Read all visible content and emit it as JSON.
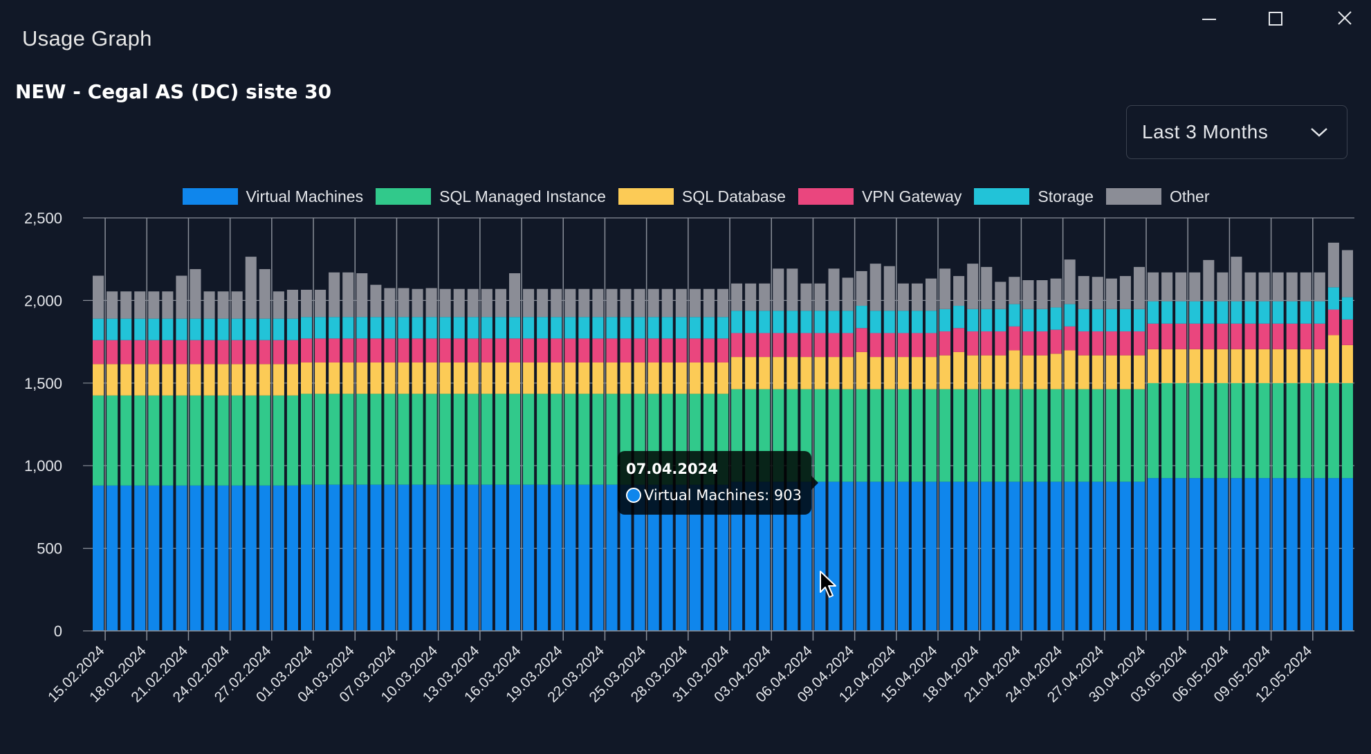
{
  "window": {
    "title": "Usage Graph",
    "minimize_label": "Minimize",
    "maximize_label": "Maximize",
    "close_label": "Close"
  },
  "subtitle": "NEW - Cegal AS (DC) siste 30",
  "range": {
    "selected": "Last 3 Months"
  },
  "tooltip": {
    "date": "07.04.2024",
    "text": "Virtual Machines: 903",
    "color": "#0f86ec"
  },
  "icons": {
    "minimize": "minimize-icon",
    "maximize": "maximize-icon",
    "close": "close-icon",
    "dropdown": "chevron-down-icon",
    "cursor": "mouse-pointer-icon"
  },
  "colors": {
    "background": "#111827",
    "grid": "#8a8f99",
    "text": "#e5e7eb"
  },
  "chart_data": {
    "type": "bar",
    "stacked": true,
    "title": "NEW - Cegal AS (DC) siste 30",
    "xlabel": "",
    "ylabel": "",
    "ylim": [
      0,
      2500
    ],
    "yticks": [
      0,
      500,
      1000,
      1500,
      2000,
      2500
    ],
    "ytick_labels": [
      "0",
      "500",
      "1,000",
      "1,500",
      "2,000",
      "2,500"
    ],
    "legend_position": "top-center",
    "categories": [
      "15.02.2024",
      "16.02.2024",
      "17.02.2024",
      "18.02.2024",
      "19.02.2024",
      "20.02.2024",
      "21.02.2024",
      "22.02.2024",
      "23.02.2024",
      "24.02.2024",
      "25.02.2024",
      "26.02.2024",
      "27.02.2024",
      "28.02.2024",
      "29.02.2024",
      "01.03.2024",
      "02.03.2024",
      "03.03.2024",
      "04.03.2024",
      "05.03.2024",
      "06.03.2024",
      "07.03.2024",
      "08.03.2024",
      "09.03.2024",
      "10.03.2024",
      "11.03.2024",
      "12.03.2024",
      "13.03.2024",
      "14.03.2024",
      "15.03.2024",
      "16.03.2024",
      "17.03.2024",
      "18.03.2024",
      "19.03.2024",
      "20.03.2024",
      "21.03.2024",
      "22.03.2024",
      "23.03.2024",
      "24.03.2024",
      "25.03.2024",
      "26.03.2024",
      "27.03.2024",
      "28.03.2024",
      "29.03.2024",
      "30.03.2024",
      "31.03.2024",
      "01.04.2024",
      "02.04.2024",
      "03.04.2024",
      "04.04.2024",
      "05.04.2024",
      "06.04.2024",
      "07.04.2024",
      "08.04.2024",
      "09.04.2024",
      "10.04.2024",
      "11.04.2024",
      "12.04.2024",
      "13.04.2024",
      "14.04.2024",
      "15.04.2024",
      "16.04.2024",
      "17.04.2024",
      "18.04.2024",
      "19.04.2024",
      "20.04.2024",
      "21.04.2024",
      "22.04.2024",
      "23.04.2024",
      "24.04.2024",
      "25.04.2024",
      "26.04.2024",
      "27.04.2024",
      "28.04.2024",
      "29.04.2024",
      "30.04.2024",
      "01.05.2024",
      "02.05.2024",
      "03.05.2024",
      "04.05.2024",
      "05.05.2024",
      "06.05.2024",
      "07.05.2024",
      "08.05.2024",
      "09.05.2024",
      "10.05.2024",
      "11.05.2024",
      "12.05.2024",
      "13.05.2024",
      "14.05.2024",
      "15.05.2024"
    ],
    "xtick_labels": [
      "15.02.2024",
      "18.02.2024",
      "21.02.2024",
      "24.02.2024",
      "27.02.2024",
      "01.03.2024",
      "04.03.2024",
      "07.03.2024",
      "10.03.2024",
      "13.03.2024",
      "16.03.2024",
      "19.03.2024",
      "22.03.2024",
      "25.03.2024",
      "28.03.2024",
      "31.03.2024",
      "03.04.2024",
      "06.04.2024",
      "09.04.2024",
      "12.04.2024",
      "15.04.2024",
      "18.04.2024",
      "21.04.2024",
      "24.04.2024",
      "27.04.2024",
      "30.04.2024",
      "03.05.2024",
      "06.05.2024",
      "09.05.2024",
      "12.05.2024"
    ],
    "series": [
      {
        "name": "Virtual Machines",
        "color": "#0f86ec",
        "values": [
          880,
          880,
          880,
          880,
          880,
          880,
          880,
          880,
          880,
          880,
          880,
          880,
          880,
          880,
          880,
          885,
          885,
          885,
          885,
          885,
          885,
          885,
          885,
          885,
          885,
          885,
          885,
          885,
          885,
          885,
          885,
          885,
          885,
          885,
          885,
          885,
          885,
          885,
          885,
          885,
          885,
          885,
          885,
          885,
          885,
          885,
          903,
          903,
          903,
          903,
          903,
          903,
          903,
          903,
          903,
          903,
          903,
          903,
          903,
          903,
          903,
          903,
          903,
          903,
          903,
          903,
          903,
          903,
          903,
          903,
          903,
          903,
          903,
          903,
          903,
          903,
          925,
          925,
          925,
          925,
          925,
          925,
          925,
          925,
          925,
          925,
          925,
          925,
          925,
          925,
          925
        ]
      },
      {
        "name": "SQL Managed Instance",
        "color": "#31c98b",
        "values": [
          545,
          545,
          545,
          545,
          545,
          545,
          545,
          545,
          545,
          545,
          545,
          545,
          545,
          545,
          545,
          550,
          550,
          550,
          550,
          550,
          550,
          550,
          550,
          550,
          550,
          550,
          550,
          550,
          550,
          550,
          550,
          550,
          550,
          550,
          550,
          550,
          550,
          550,
          550,
          550,
          550,
          550,
          550,
          550,
          550,
          550,
          560,
          560,
          560,
          560,
          560,
          560,
          560,
          560,
          560,
          560,
          560,
          560,
          560,
          560,
          560,
          560,
          560,
          560,
          560,
          560,
          560,
          560,
          560,
          560,
          560,
          560,
          560,
          560,
          560,
          560,
          575,
          575,
          575,
          575,
          575,
          575,
          575,
          575,
          575,
          575,
          575,
          575,
          575,
          575,
          575
        ]
      },
      {
        "name": "SQL Database",
        "color": "#fccb56",
        "values": [
          190,
          190,
          190,
          190,
          190,
          190,
          190,
          190,
          190,
          190,
          190,
          190,
          190,
          190,
          190,
          190,
          190,
          190,
          190,
          190,
          190,
          190,
          190,
          190,
          190,
          190,
          190,
          190,
          190,
          190,
          190,
          190,
          190,
          190,
          190,
          190,
          190,
          190,
          190,
          190,
          190,
          190,
          190,
          190,
          190,
          190,
          195,
          195,
          195,
          195,
          195,
          195,
          195,
          195,
          195,
          225,
          195,
          195,
          195,
          195,
          195,
          205,
          225,
          205,
          205,
          205,
          235,
          205,
          205,
          215,
          235,
          205,
          205,
          205,
          205,
          205,
          205,
          205,
          205,
          205,
          205,
          205,
          205,
          205,
          205,
          205,
          205,
          205,
          205,
          290,
          230
        ]
      },
      {
        "name": "VPN Gateway",
        "color": "#ea467e",
        "values": [
          145,
          145,
          145,
          145,
          145,
          145,
          145,
          145,
          145,
          145,
          145,
          145,
          145,
          145,
          145,
          145,
          145,
          145,
          145,
          145,
          145,
          145,
          145,
          145,
          145,
          145,
          145,
          145,
          145,
          145,
          145,
          145,
          145,
          145,
          145,
          145,
          145,
          145,
          145,
          145,
          145,
          145,
          145,
          145,
          145,
          145,
          145,
          145,
          145,
          145,
          145,
          145,
          145,
          145,
          145,
          145,
          145,
          145,
          145,
          145,
          145,
          145,
          145,
          145,
          145,
          145,
          145,
          145,
          145,
          145,
          145,
          145,
          145,
          145,
          145,
          145,
          155,
          155,
          155,
          155,
          155,
          155,
          155,
          155,
          155,
          155,
          155,
          155,
          155,
          155,
          155
        ]
      },
      {
        "name": "Storage",
        "color": "#22c3d8",
        "values": [
          130,
          130,
          130,
          130,
          130,
          130,
          130,
          130,
          130,
          130,
          130,
          130,
          130,
          130,
          130,
          130,
          130,
          130,
          130,
          130,
          130,
          130,
          130,
          130,
          130,
          130,
          130,
          130,
          130,
          130,
          130,
          130,
          130,
          130,
          130,
          130,
          130,
          130,
          130,
          130,
          130,
          130,
          130,
          130,
          130,
          130,
          135,
          135,
          135,
          135,
          135,
          135,
          135,
          135,
          135,
          135,
          135,
          135,
          135,
          135,
          135,
          135,
          135,
          135,
          135,
          135,
          135,
          135,
          135,
          135,
          135,
          135,
          135,
          135,
          135,
          135,
          135,
          135,
          135,
          135,
          135,
          135,
          135,
          135,
          135,
          135,
          135,
          135,
          135,
          135,
          135
        ]
      },
      {
        "name": "Other",
        "color": "#8b8d96",
        "values": [
          260,
          165,
          165,
          165,
          165,
          165,
          260,
          300,
          165,
          165,
          165,
          375,
          300,
          165,
          175,
          165,
          165,
          270,
          270,
          265,
          195,
          175,
          175,
          170,
          175,
          170,
          170,
          170,
          170,
          170,
          265,
          170,
          170,
          170,
          170,
          170,
          170,
          170,
          170,
          170,
          170,
          170,
          170,
          170,
          170,
          170,
          165,
          165,
          165,
          255,
          255,
          165,
          165,
          255,
          200,
          210,
          285,
          270,
          165,
          165,
          195,
          245,
          180,
          275,
          255,
          165,
          165,
          175,
          175,
          175,
          270,
          200,
          195,
          185,
          200,
          255,
          175,
          175,
          175,
          175,
          250,
          175,
          270,
          175,
          175,
          175,
          175,
          175,
          175,
          270,
          285
        ]
      }
    ]
  }
}
